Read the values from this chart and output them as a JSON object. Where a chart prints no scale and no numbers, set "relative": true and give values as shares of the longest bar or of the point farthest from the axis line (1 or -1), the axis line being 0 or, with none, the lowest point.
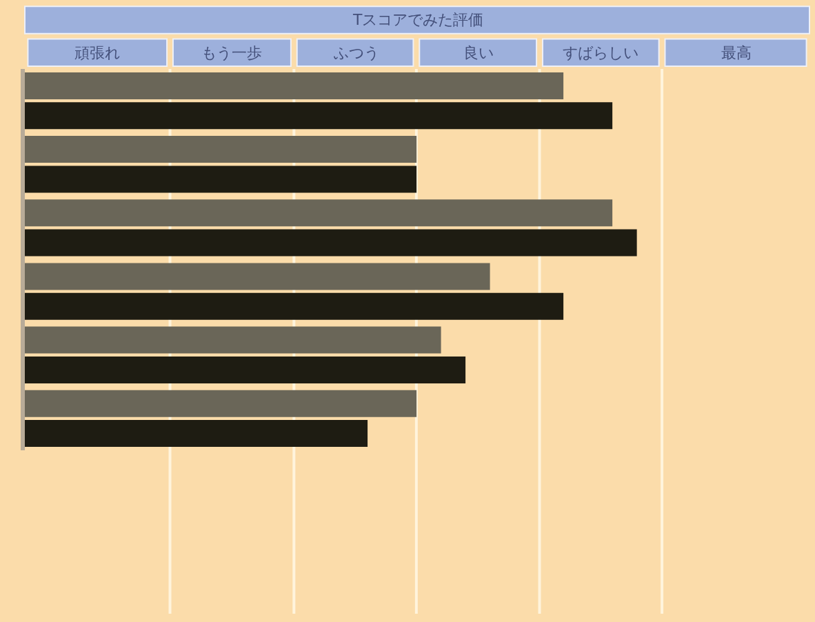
{
  "chart_data": {
    "type": "bar",
    "orientation": "horizontal",
    "relative": true,
    "title": "Tスコアでみた評価",
    "annotations": [
      "頑張れ",
      "もう一歩",
      "ふつう",
      "良い",
      "すばらしい",
      "最高"
    ],
    "categories": [
      null,
      null,
      null,
      null,
      null,
      null
    ],
    "series": [
      {
        "color": "#6a6658",
        "values": [
          0.88,
          0.64,
          0.96,
          0.76,
          0.68,
          0.64
        ]
      },
      {
        "color": "#1e1c12",
        "values": [
          0.96,
          0.64,
          1.0,
          0.88,
          0.72,
          0.56
        ]
      }
    ]
  }
}
